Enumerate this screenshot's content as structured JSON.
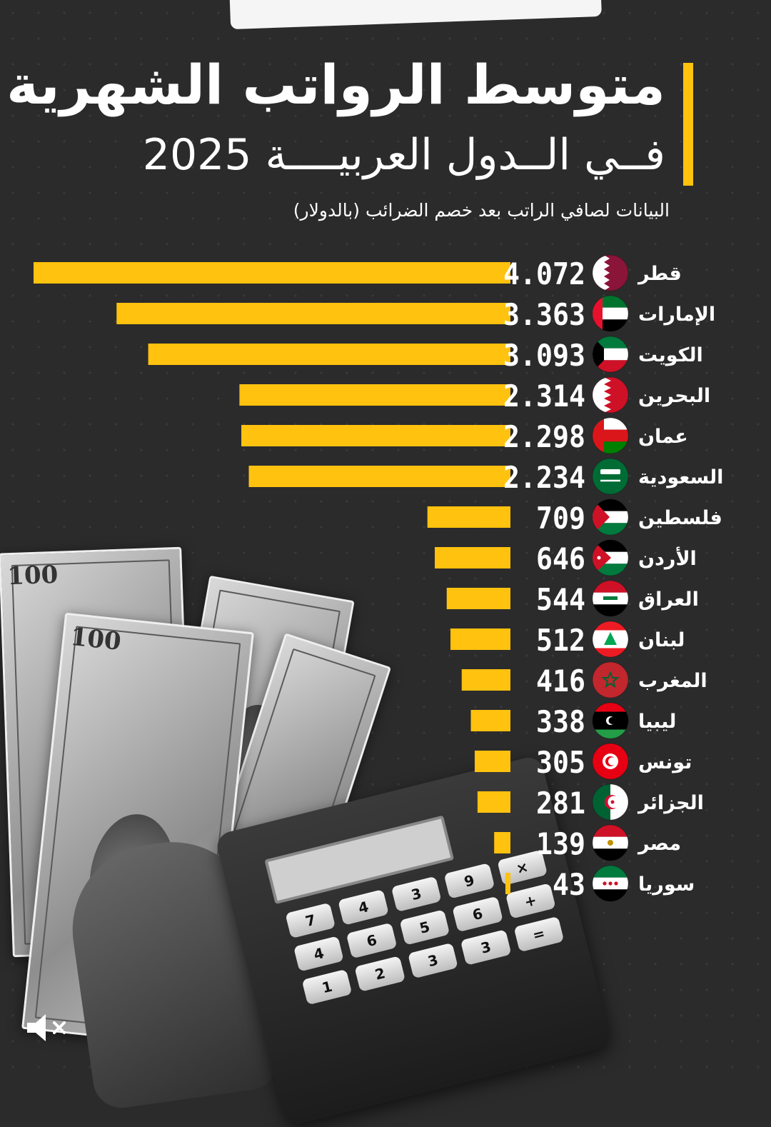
{
  "header": {
    "title_line1": "متوسط الرواتب الشهرية",
    "title_line2": "فــي الــدول العربيــــة 2025",
    "subtitle": "البيانات لصافي الراتب بعد خصم الضرائب (بالدولار)"
  },
  "colors": {
    "bar": "#ffc20e",
    "background": "#2b2b2c",
    "text": "#ffffff"
  },
  "chart_data": {
    "type": "bar",
    "orientation": "horizontal",
    "title": "متوسط الرواتب الشهرية في الدول العربية 2025",
    "unit": "USD",
    "categories": [
      "قطر",
      "الإمارات",
      "الكويت",
      "البحرين",
      "عمان",
      "السعودية",
      "فلسطين",
      "الأردن",
      "العراق",
      "لبنان",
      "المغرب",
      "ليبيا",
      "تونس",
      "الجزائر",
      "مصر",
      "سوريا"
    ],
    "values": [
      4072,
      3363,
      3093,
      2314,
      2298,
      2234,
      709,
      646,
      544,
      512,
      416,
      338,
      305,
      281,
      139,
      43
    ],
    "value_labels": [
      "4.072",
      "3.363",
      "3.093",
      "2.314",
      "2.298",
      "2.234",
      "709",
      "646",
      "544",
      "512",
      "416",
      "338",
      "305",
      "281",
      "139",
      "43"
    ],
    "flags": [
      "qatar-flag-icon",
      "uae-flag-icon",
      "kuwait-flag-icon",
      "bahrain-flag-icon",
      "oman-flag-icon",
      "saudi-flag-icon",
      "palestine-flag-icon",
      "jordan-flag-icon",
      "iraq-flag-icon",
      "lebanon-flag-icon",
      "morocco-flag-icon",
      "libya-flag-icon",
      "tunisia-flag-icon",
      "algeria-flag-icon",
      "egypt-flag-icon",
      "syria-flag-icon"
    ]
  },
  "illustration": {
    "bill_denomination": "100",
    "calculator_keys": [
      "7",
      "4",
      "3",
      "9",
      "×",
      "4",
      "6",
      "5",
      "6",
      "+",
      "1",
      "2",
      "3",
      "3",
      "="
    ]
  }
}
